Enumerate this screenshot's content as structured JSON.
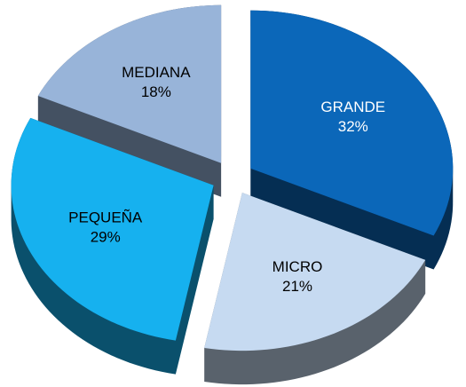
{
  "chart_data": {
    "type": "pie",
    "categories": [
      "GRANDE",
      "MICRO",
      "PEQUEÑA",
      "MEDIANA"
    ],
    "values": [
      32,
      21,
      29,
      18
    ],
    "value_labels": [
      "32%",
      "21%",
      "29%",
      "18%"
    ],
    "colors": [
      "#0b67b9",
      "#c6daf1",
      "#16b1ef",
      "#98b4d9"
    ],
    "label_colors": [
      "#ffffff",
      "#000000",
      "#000000",
      "#000000"
    ]
  }
}
